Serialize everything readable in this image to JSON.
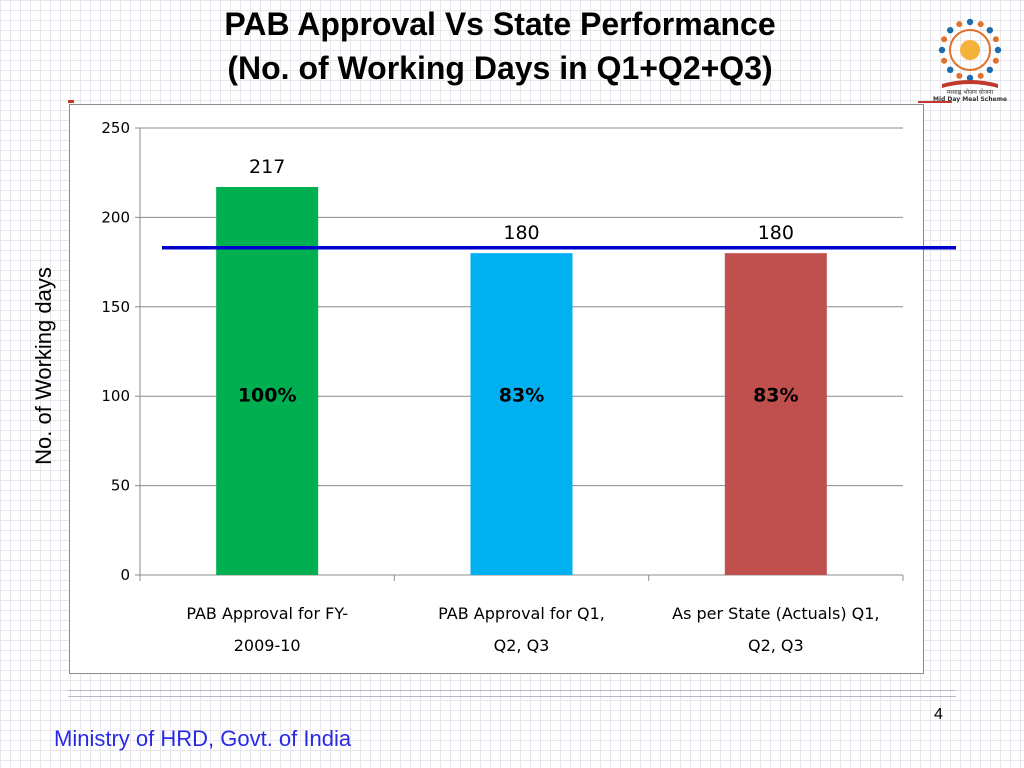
{
  "slide": {
    "title_line1": "PAB Approval  Vs State Performance",
    "title_line2": "(No. of Working Days in Q1+Q2+Q3)",
    "logo_caption_line1": "मध्याह्न भोजन योजना",
    "logo_caption_line2": "Mid Day Meal Scheme",
    "page_number": "4",
    "footer": "Ministry of HRD, Govt. of India"
  },
  "colors": {
    "bar1": "#00b050",
    "bar2": "#00b0f0",
    "bar3": "#c0504d",
    "reference_line": "#0000cc"
  },
  "chart_data": {
    "type": "bar",
    "title": "",
    "ylabel": "No. of Working days",
    "xlabel": "",
    "ylim": [
      0,
      250
    ],
    "yticks": [
      "0",
      "50",
      "100",
      "150",
      "200",
      "250"
    ],
    "categories": [
      {
        "line1": "PAB Approval for FY-",
        "line2": "2009-10"
      },
      {
        "line1": "PAB Approval for Q1,",
        "line2": "Q2, Q3"
      },
      {
        "line1": "As per State (Actuals) Q1,",
        "line2": "Q2, Q3"
      }
    ],
    "values": [
      217,
      180,
      180
    ],
    "value_labels": [
      "217",
      "180",
      "180"
    ],
    "percent_labels": [
      "100%",
      "83%",
      "83%"
    ],
    "reference_line_value": 183,
    "grid": true,
    "legend": "none"
  }
}
